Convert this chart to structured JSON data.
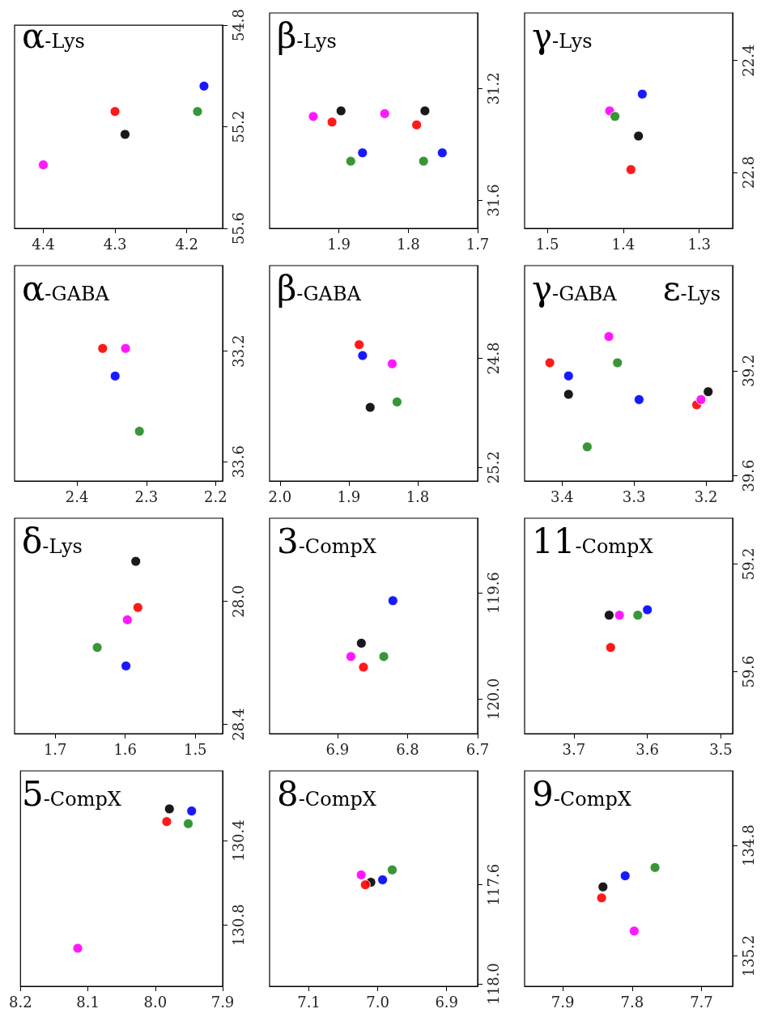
{
  "chart_data": [
    {
      "type": "scatter",
      "title": "α-Lys",
      "marker": "circle",
      "xlim": [
        4.44,
        4.15
      ],
      "xticks": [
        4.4,
        4.3,
        4.2
      ],
      "ylim": [
        55.6,
        54.8
      ],
      "yticks": [
        54.8,
        55.2,
        55.6
      ],
      "series": [
        {
          "color": "#000000",
          "x": [
            4.286
          ],
          "values": [
            55.23
          ]
        },
        {
          "color": "#ff0000",
          "x": [
            4.3
          ],
          "values": [
            55.14
          ]
        },
        {
          "color": "#ff00ff",
          "x": [
            4.4
          ],
          "values": [
            55.35
          ]
        },
        {
          "color": "#228b22",
          "x": [
            4.185
          ],
          "values": [
            55.14
          ]
        },
        {
          "color": "#0000ff",
          "x": [
            4.176
          ],
          "values": [
            55.04
          ]
        }
      ]
    },
    {
      "type": "scatter",
      "title": "β-Lys",
      "marker": "circle",
      "xlim": [
        2.0,
        1.7
      ],
      "xticks": [
        1.9,
        1.8,
        1.7
      ],
      "ylim": [
        31.7,
        30.93
      ],
      "yticks": [
        31.2,
        31.6
      ],
      "series": [
        {
          "color": "#000000",
          "x": [
            1.897,
            1.776
          ],
          "values": [
            31.28,
            31.28
          ]
        },
        {
          "color": "#ff0000",
          "x": [
            1.91,
            1.788
          ],
          "values": [
            31.32,
            31.33
          ]
        },
        {
          "color": "#ff00ff",
          "x": [
            1.937,
            1.834
          ],
          "values": [
            31.3,
            31.29
          ]
        },
        {
          "color": "#228b22",
          "x": [
            1.883,
            1.778
          ],
          "values": [
            31.46,
            31.46
          ]
        },
        {
          "color": "#0000ff",
          "x": [
            1.866,
            1.751
          ],
          "values": [
            31.43,
            31.43
          ]
        }
      ]
    },
    {
      "type": "scatter",
      "title": "γ-Lys",
      "marker": "circle",
      "xlim": [
        1.53,
        1.256
      ],
      "xticks": [
        1.5,
        1.4,
        1.3
      ],
      "ylim": [
        23.0,
        22.23
      ],
      "yticks": [
        22.4,
        22.8
      ],
      "series": [
        {
          "color": "#000000",
          "x": [
            1.38
          ],
          "values": [
            22.67
          ]
        },
        {
          "color": "#ff0000",
          "x": [
            1.39
          ],
          "values": [
            22.79
          ]
        },
        {
          "color": "#ff00ff",
          "x": [
            1.418
          ],
          "values": [
            22.58
          ]
        },
        {
          "color": "#228b22",
          "x": [
            1.411
          ],
          "values": [
            22.6
          ]
        },
        {
          "color": "#0000ff",
          "x": [
            1.375
          ],
          "values": [
            22.52
          ]
        }
      ]
    },
    {
      "type": "scatter",
      "title": "α-GABA",
      "marker": "circle",
      "xlim": [
        2.49,
        2.19
      ],
      "xticks": [
        2.4,
        2.3,
        2.2
      ],
      "ylim": [
        33.67,
        32.89
      ],
      "yticks": [
        33.2,
        33.6
      ],
      "series": [
        {
          "color": "#ff0000",
          "x": [
            2.363
          ],
          "values": [
            33.19
          ]
        },
        {
          "color": "#ff00ff",
          "x": [
            2.33
          ],
          "values": [
            33.19
          ]
        },
        {
          "color": "#228b22",
          "x": [
            2.31
          ],
          "values": [
            33.49
          ]
        },
        {
          "color": "#0000ff",
          "x": [
            2.345
          ],
          "values": [
            33.29
          ]
        }
      ]
    },
    {
      "type": "scatter",
      "title": "β-GABA",
      "marker": "circle",
      "xlim": [
        2.015,
        1.713
      ],
      "xticks": [
        {
          "value": 2,
          "label": "2.0"
        },
        1.9,
        1.8
      ],
      "ylim": [
        25.25,
        24.46
      ],
      "yticks": [
        24.8,
        25.2
      ],
      "series": [
        {
          "color": "#000000",
          "x": [
            1.869
          ],
          "values": [
            24.98
          ]
        },
        {
          "color": "#ff0000",
          "x": [
            1.885
          ],
          "values": [
            24.75
          ]
        },
        {
          "color": "#ff00ff",
          "x": [
            1.837
          ],
          "values": [
            24.82
          ]
        },
        {
          "color": "#228b22",
          "x": [
            1.83
          ],
          "values": [
            24.96
          ]
        },
        {
          "color": "#0000ff",
          "x": [
            1.88
          ],
          "values": [
            24.79
          ]
        }
      ]
    },
    {
      "type": "scatter",
      "title": "γ-GABA",
      "annotations": [
        "ε-Lys"
      ],
      "marker": "circle",
      "xlim": [
        3.452,
        3.163
      ],
      "xticks": [
        3.4,
        3.3,
        3.2
      ],
      "ylim": [
        39.62,
        38.8
      ],
      "yticks": [
        39.2,
        39.6
      ],
      "series": [
        {
          "color": "#000000",
          "x": [
            3.391,
            3.197
          ],
          "values": [
            39.29,
            39.28
          ]
        },
        {
          "color": "#ff0000",
          "x": [
            3.417,
            3.213
          ],
          "values": [
            39.17,
            39.33
          ]
        },
        {
          "color": "#ff00ff",
          "x": [
            3.335,
            3.207
          ],
          "values": [
            39.07,
            39.31
          ]
        },
        {
          "color": "#228b22",
          "x": [
            3.323,
            3.365
          ],
          "values": [
            39.17,
            39.49
          ]
        },
        {
          "color": "#0000ff",
          "x": [
            3.391,
            3.293
          ],
          "values": [
            39.22,
            39.31
          ]
        }
      ]
    },
    {
      "type": "scatter",
      "title": "δ-Lys",
      "marker": "circle",
      "xlim": [
        1.758,
        1.461
      ],
      "xticks": [
        1.7,
        1.6,
        1.5
      ],
      "ylim": [
        28.43,
        27.73
      ],
      "yticks": [
        {
          "value": 28,
          "label": "28.0"
        },
        28.4
      ],
      "series": [
        {
          "color": "#000000",
          "x": [
            1.585
          ],
          "values": [
            27.87
          ]
        },
        {
          "color": "#ff0000",
          "x": [
            1.582
          ],
          "values": [
            28.02
          ]
        },
        {
          "color": "#ff00ff",
          "x": [
            1.597
          ],
          "values": [
            28.06
          ]
        },
        {
          "color": "#228b22",
          "x": [
            1.64
          ],
          "values": [
            28.15
          ]
        },
        {
          "color": "#0000ff",
          "x": [
            1.599
          ],
          "values": [
            28.21
          ]
        }
      ]
    },
    {
      "type": "scatter",
      "title": "3-CompX",
      "marker": "circle",
      "xlim": [
        6.997,
        6.7
      ],
      "xticks": [
        6.9,
        6.8,
        6.7
      ],
      "ylim": [
        120.13,
        119.32
      ],
      "yticks": [
        119.6,
        {
          "value": 120,
          "label": "120.0"
        }
      ],
      "series": [
        {
          "color": "#000000",
          "x": [
            6.866
          ],
          "values": [
            119.79
          ]
        },
        {
          "color": "#ff0000",
          "x": [
            6.863
          ],
          "values": [
            119.88
          ]
        },
        {
          "color": "#ff00ff",
          "x": [
            6.881
          ],
          "values": [
            119.84
          ]
        },
        {
          "color": "#228b22",
          "x": [
            6.834
          ],
          "values": [
            119.84
          ]
        },
        {
          "color": "#0000ff",
          "x": [
            6.821
          ],
          "values": [
            119.63
          ]
        }
      ]
    },
    {
      "type": "scatter",
      "title": "11-CompX",
      "marker": "circle",
      "xlim": [
        3.767,
        3.484
      ],
      "xticks": [
        3.7,
        3.6,
        3.5
      ],
      "ylim": [
        59.83,
        59.03
      ],
      "yticks": [
        59.2,
        59.6
      ],
      "series": [
        {
          "color": "#000000",
          "x": [
            3.652
          ],
          "values": [
            59.39
          ]
        },
        {
          "color": "#ff0000",
          "x": [
            3.65
          ],
          "values": [
            59.51
          ]
        },
        {
          "color": "#ff00ff",
          "x": [
            3.638
          ],
          "values": [
            59.39
          ]
        },
        {
          "color": "#228b22",
          "x": [
            3.613
          ],
          "values": [
            59.39
          ]
        },
        {
          "color": "#0000ff",
          "x": [
            3.6
          ],
          "values": [
            59.37
          ]
        }
      ]
    },
    {
      "type": "scatter",
      "title": "5-CompX",
      "marker": "circle",
      "xlim": [
        8.2,
        7.9
      ],
      "xticks": [
        8.2,
        8.1,
        {
          "value": 8,
          "label": "8.0"
        },
        7.9
      ],
      "ylim": [
        131.09,
        130.07
      ],
      "yticks": [
        130.4,
        130.8
      ],
      "series": [
        {
          "color": "#000000",
          "x": [
            7.979
          ],
          "values": [
            130.25
          ]
        },
        {
          "color": "#ff0000",
          "x": [
            7.983
          ],
          "values": [
            130.31
          ]
        },
        {
          "color": "#ff00ff",
          "x": [
            8.115
          ],
          "values": [
            130.91
          ]
        },
        {
          "color": "#228b22",
          "x": [
            7.951
          ],
          "values": [
            130.32
          ]
        },
        {
          "color": "#0000ff",
          "x": [
            7.946
          ],
          "values": [
            130.26
          ]
        }
      ]
    },
    {
      "type": "scatter",
      "title": "8-CompX",
      "marker": "circle",
      "xlim": [
        7.157,
        6.855
      ],
      "xticks": [
        7.1,
        {
          "value": 7,
          "label": "7.0"
        },
        6.9
      ],
      "ylim": [
        118.01,
        117.14
      ],
      "yticks": [
        117.6,
        {
          "value": 118,
          "label": "118.0"
        }
      ],
      "series": [
        {
          "color": "#000000",
          "x": [
            7.01
          ],
          "values": [
            117.59
          ]
        },
        {
          "color": "#ff0000",
          "x": [
            7.018
          ],
          "values": [
            117.6
          ]
        },
        {
          "color": "#ff00ff",
          "x": [
            7.024
          ],
          "values": [
            117.56
          ]
        },
        {
          "color": "#228b22",
          "x": [
            6.979
          ],
          "values": [
            117.54
          ]
        },
        {
          "color": "#0000ff",
          "x": [
            6.993
          ],
          "values": [
            117.58
          ]
        }
      ]
    },
    {
      "type": "scatter",
      "title": "9-CompX",
      "marker": "circle",
      "xlim": [
        7.955,
        7.655
      ],
      "xticks": [
        7.9,
        7.8,
        7.7
      ],
      "ylim": [
        135.31,
        134.53
      ],
      "yticks": [
        134.8,
        135.2
      ],
      "series": [
        {
          "color": "#000000",
          "x": [
            7.842
          ],
          "values": [
            134.95
          ]
        },
        {
          "color": "#ff0000",
          "x": [
            7.844
          ],
          "values": [
            134.99
          ]
        },
        {
          "color": "#ff00ff",
          "x": [
            7.797
          ],
          "values": [
            135.11
          ]
        },
        {
          "color": "#228b22",
          "x": [
            7.767
          ],
          "values": [
            134.88
          ]
        },
        {
          "color": "#0000ff",
          "x": [
            7.81
          ],
          "values": [
            134.91
          ]
        }
      ]
    }
  ]
}
